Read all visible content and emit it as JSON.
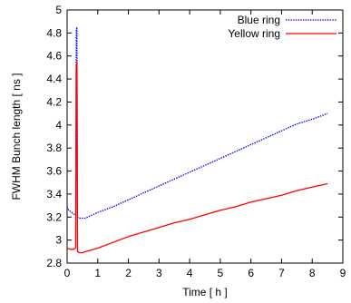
{
  "chart_data": {
    "type": "line",
    "title": "",
    "xlabel": "Time [ h ]",
    "ylabel": "FWHM Bunch length [ ns ]",
    "xlim": [
      0,
      9
    ],
    "ylim": [
      2.8,
      5
    ],
    "x_ticks": [
      "0",
      "1",
      "2",
      "3",
      "4",
      "5",
      "6",
      "7",
      "8",
      "9"
    ],
    "y_ticks": [
      "2.8",
      "3",
      "3.2",
      "3.4",
      "3.6",
      "3.8",
      "4",
      "4.2",
      "4.4",
      "4.6",
      "4.8",
      "5"
    ],
    "grid": false,
    "legend_position": "top-right",
    "series": [
      {
        "name": "Blue ring",
        "color": "#0000ff",
        "line_style": "dotted",
        "points": [
          [
            0.0,
            3.29
          ],
          [
            0.05,
            3.26
          ],
          [
            0.1,
            3.25
          ],
          [
            0.15,
            3.24
          ],
          [
            0.2,
            3.23
          ],
          [
            0.25,
            3.22
          ],
          [
            0.28,
            3.22
          ],
          [
            0.3,
            4.83
          ],
          [
            0.32,
            4.85
          ],
          [
            0.34,
            3.2
          ],
          [
            0.4,
            3.19
          ],
          [
            0.5,
            3.19
          ],
          [
            0.6,
            3.19
          ],
          [
            0.75,
            3.21
          ],
          [
            1.0,
            3.24
          ],
          [
            1.5,
            3.29
          ],
          [
            2.0,
            3.35
          ],
          [
            2.5,
            3.41
          ],
          [
            3.0,
            3.47
          ],
          [
            3.5,
            3.53
          ],
          [
            4.0,
            3.59
          ],
          [
            4.5,
            3.65
          ],
          [
            5.0,
            3.71
          ],
          [
            5.5,
            3.77
          ],
          [
            6.0,
            3.83
          ],
          [
            6.5,
            3.89
          ],
          [
            7.0,
            3.95
          ],
          [
            7.5,
            4.01
          ],
          [
            8.0,
            4.05
          ],
          [
            8.5,
            4.1
          ]
        ]
      },
      {
        "name": "Yellow ring",
        "color": "#ff0000",
        "line_style": "solid",
        "points": [
          [
            0.0,
            2.93
          ],
          [
            0.1,
            2.92
          ],
          [
            0.2,
            2.92
          ],
          [
            0.28,
            2.93
          ],
          [
            0.3,
            4.5
          ],
          [
            0.32,
            4.55
          ],
          [
            0.34,
            2.9
          ],
          [
            0.4,
            2.89
          ],
          [
            0.5,
            2.89
          ],
          [
            0.6,
            2.9
          ],
          [
            0.75,
            2.91
          ],
          [
            1.0,
            2.93
          ],
          [
            1.5,
            2.98
          ],
          [
            2.0,
            3.03
          ],
          [
            2.5,
            3.07
          ],
          [
            3.0,
            3.11
          ],
          [
            3.5,
            3.15
          ],
          [
            4.0,
            3.18
          ],
          [
            4.5,
            3.22
          ],
          [
            5.0,
            3.26
          ],
          [
            5.5,
            3.29
          ],
          [
            6.0,
            3.33
          ],
          [
            6.5,
            3.36
          ],
          [
            7.0,
            3.39
          ],
          [
            7.5,
            3.43
          ],
          [
            8.0,
            3.46
          ],
          [
            8.5,
            3.49
          ]
        ]
      }
    ]
  }
}
